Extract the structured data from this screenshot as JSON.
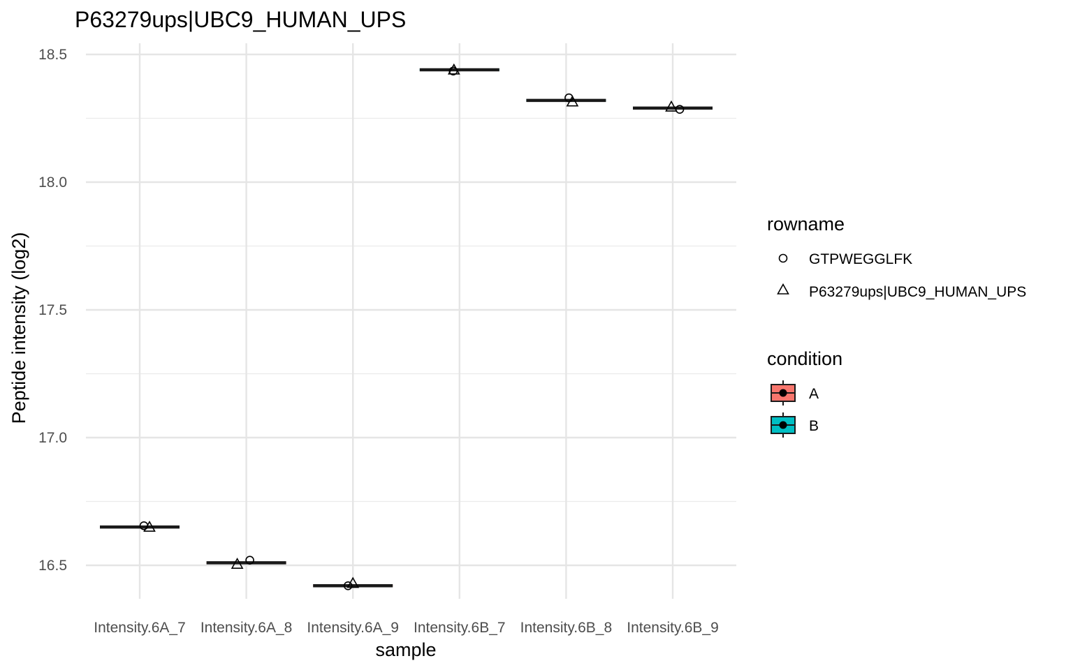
{
  "chart_data": {
    "type": "boxplot",
    "title": "P63279ups|UBC9_HUMAN_UPS",
    "xlabel": "sample",
    "ylabel": "Peptide intensity (log2)",
    "categories": [
      "Intensity.6A_7",
      "Intensity.6A_8",
      "Intensity.6A_9",
      "Intensity.6B_7",
      "Intensity.6B_8",
      "Intensity.6B_9"
    ],
    "ylim": [
      16.34,
      18.54
    ],
    "y_ticks": [
      16.5,
      17.0,
      17.5,
      18.0,
      18.5
    ],
    "y_tick_labels": [
      "16.5",
      "17.0",
      "17.5",
      "18.0",
      "18.5"
    ],
    "grid": true,
    "boxes": [
      {
        "sample": "Intensity.6A_7",
        "condition": "A",
        "median": 16.65
      },
      {
        "sample": "Intensity.6A_8",
        "condition": "A",
        "median": 16.51
      },
      {
        "sample": "Intensity.6A_9",
        "condition": "A",
        "median": 16.42
      },
      {
        "sample": "Intensity.6B_7",
        "condition": "B",
        "median": 18.44
      },
      {
        "sample": "Intensity.6B_8",
        "condition": "B",
        "median": 18.32
      },
      {
        "sample": "Intensity.6B_9",
        "condition": "B",
        "median": 18.29
      }
    ],
    "series": [
      {
        "name": "GTPWEGGLFK",
        "shape": "circle",
        "points": [
          {
            "sample": "Intensity.6A_7",
            "y": 16.655
          },
          {
            "sample": "Intensity.6A_8",
            "y": 16.52
          },
          {
            "sample": "Intensity.6A_9",
            "y": 16.42
          },
          {
            "sample": "Intensity.6B_7",
            "y": 18.435
          },
          {
            "sample": "Intensity.6B_8",
            "y": 18.33
          },
          {
            "sample": "Intensity.6B_9",
            "y": 18.285
          }
        ]
      },
      {
        "name": "P63279ups|UBC9_HUMAN_UPS",
        "shape": "triangle",
        "points": [
          {
            "sample": "Intensity.6A_7",
            "y": 16.65
          },
          {
            "sample": "Intensity.6A_8",
            "y": 16.505
          },
          {
            "sample": "Intensity.6A_9",
            "y": 16.43
          },
          {
            "sample": "Intensity.6B_7",
            "y": 18.44
          },
          {
            "sample": "Intensity.6B_8",
            "y": 18.315
          },
          {
            "sample": "Intensity.6B_9",
            "y": 18.295
          }
        ]
      }
    ],
    "legends": [
      {
        "title": "rowname",
        "entries": [
          {
            "label": "GTPWEGGLFK",
            "shape": "circle"
          },
          {
            "label": "P63279ups|UBC9_HUMAN_UPS",
            "shape": "triangle"
          }
        ]
      },
      {
        "title": "condition",
        "entries": [
          {
            "label": "A",
            "color": "#F8766D"
          },
          {
            "label": "B",
            "color": "#00BFC4"
          }
        ]
      }
    ],
    "legend_position": "right"
  }
}
